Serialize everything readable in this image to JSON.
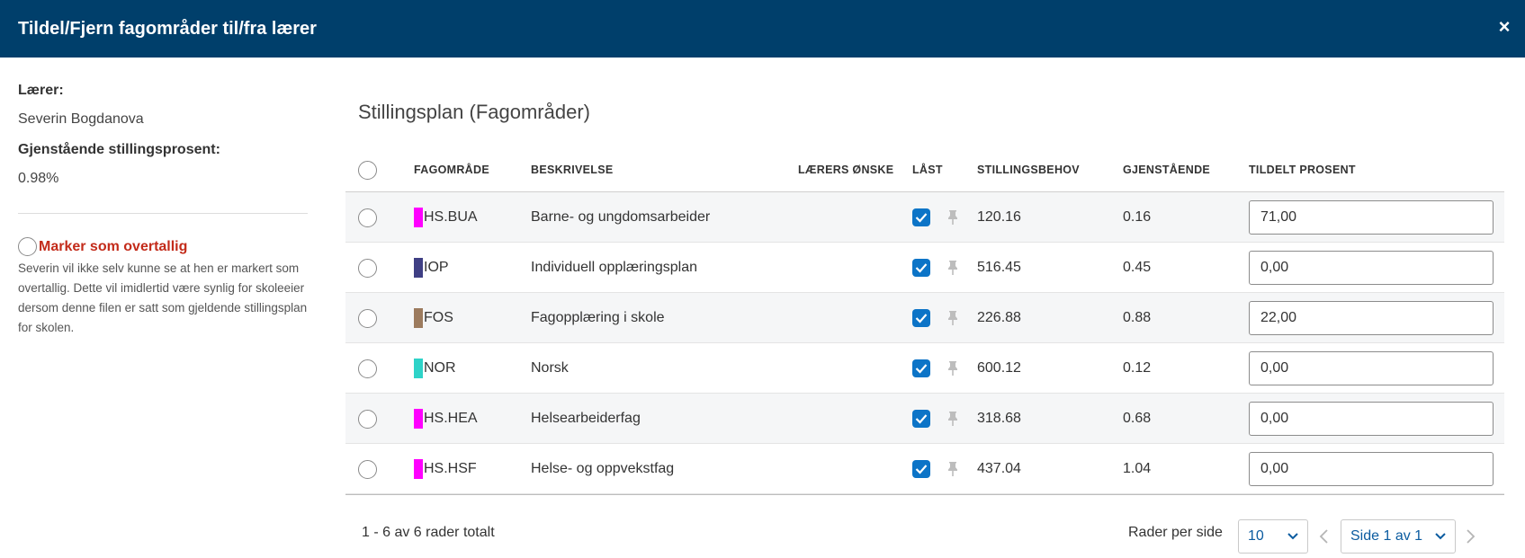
{
  "dialog": {
    "title": "Tildel/Fjern fagområder til/fra lærer",
    "close_icon": "×"
  },
  "sidebar": {
    "teacher_label": "Lærer:",
    "teacher_name": "Severin Bogdanova",
    "remaining_label": "Gjenstående stillingsprosent:",
    "remaining_value": "0.98%",
    "overtall_label": "Marker som overtallig",
    "overtall_description": "Severin vil ikke selv kunne se at hen er markert som overtallig. Dette vil imidlertid være synlig for skoleeier dersom denne filen er satt som gjeldende stillingsplan for skolen."
  },
  "main": {
    "section_title": "Stillingsplan (Fagområder)",
    "columns": {
      "subject_area": "FAGOMRÅDE",
      "description": "BESKRIVELSE",
      "teacher_wish": "LÆRERS ØNSKE",
      "locked": "LÅST",
      "position_need": "STILLINGSBEHOV",
      "remaining": "GJENSTÅENDE",
      "assigned_percent": "TILDELT PROSENT"
    },
    "rows": [
      {
        "code": "HS.BUA",
        "color": "#ff00ff",
        "description": "Barne- og ungdomsarbeider",
        "locked": true,
        "need": "120.16",
        "remaining": "0.16",
        "assigned": "71,00"
      },
      {
        "code": "IOP",
        "color": "#3f3f84",
        "description": "Individuell opplæringsplan",
        "locked": true,
        "need": "516.45",
        "remaining": "0.45",
        "assigned": "0,00"
      },
      {
        "code": "FOS",
        "color": "#9c7b5e",
        "description": "Fagopplæring i skole",
        "locked": true,
        "need": "226.88",
        "remaining": "0.88",
        "assigned": "22,00"
      },
      {
        "code": "NOR",
        "color": "#2ed3c8",
        "description": "Norsk",
        "locked": true,
        "need": "600.12",
        "remaining": "0.12",
        "assigned": "0,00"
      },
      {
        "code": "HS.HEA",
        "color": "#ff00ff",
        "description": "Helsearbeiderfag",
        "locked": true,
        "need": "318.68",
        "remaining": "0.68",
        "assigned": "0,00"
      },
      {
        "code": "HS.HSF",
        "color": "#ff00ff",
        "description": "Helse- og oppvekstfag",
        "locked": true,
        "need": "437.04",
        "remaining": "1.04",
        "assigned": "0,00"
      }
    ]
  },
  "footer": {
    "total_text": "1 - 6 av 6 rader totalt",
    "rows_per_page_label": "Rader per side",
    "rows_per_page_value": "10",
    "page_value": "Side 1 av 1"
  },
  "colors": {
    "header_bg": "#003f6b",
    "accent": "#0c74c7",
    "danger": "#c32b1a"
  }
}
